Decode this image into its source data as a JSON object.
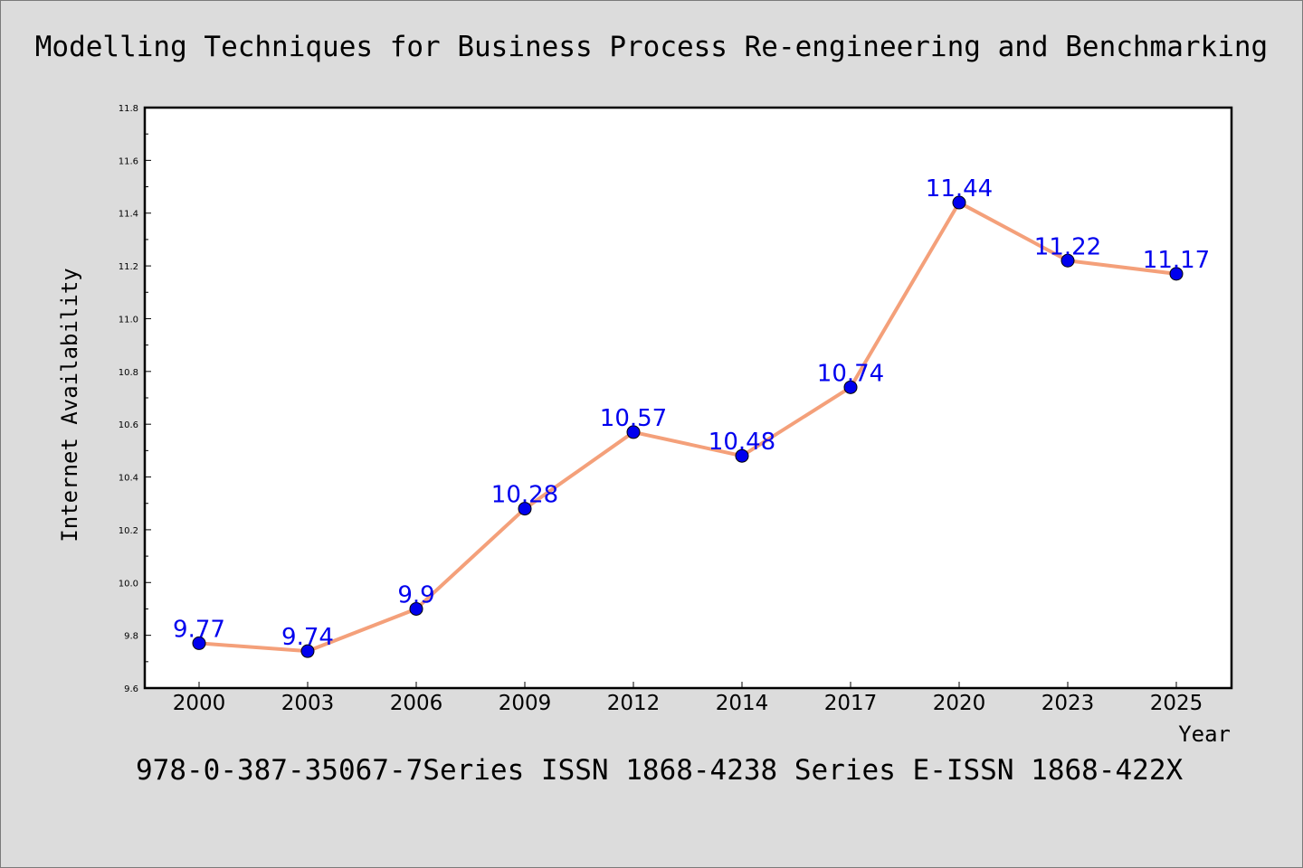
{
  "page": {
    "title": "Modelling Techniques for Business Process Re-engineering and Benchmarking",
    "footer": "978-0-387-35067-7Series ISSN 1868-4238 Series E-ISSN 1868-422X"
  },
  "chart_data": {
    "type": "line",
    "title": "Modelling Techniques for Business Process Re-engineering and Benchmarking",
    "xlabel": "Year",
    "ylabel": "Internet Availability",
    "categories": [
      "2000",
      "2003",
      "2006",
      "2009",
      "2012",
      "2014",
      "2017",
      "2020",
      "2023",
      "2025"
    ],
    "series": [
      {
        "values": [
          9.77,
          9.74,
          9.9,
          10.28,
          10.57,
          10.48,
          10.74,
          11.44,
          11.22,
          11.17
        ],
        "labels": [
          "9.77",
          "9.74",
          "9.9",
          "10.28",
          "10.57",
          "10.48",
          "10.74",
          "11.44",
          "11.22",
          "11.17"
        ],
        "line_color": "#f4a07a",
        "marker_color": "#0000ee",
        "label_color": "#0000ee"
      }
    ],
    "ylim": [
      9.6,
      11.8
    ],
    "yticks": [
      "9.6",
      "9.8",
      "10.0",
      "10.2",
      "10.4",
      "10.6",
      "10.8",
      "11.0",
      "11.2",
      "11.4",
      "11.6",
      "11.8"
    ],
    "grid": false,
    "legend": "none"
  }
}
